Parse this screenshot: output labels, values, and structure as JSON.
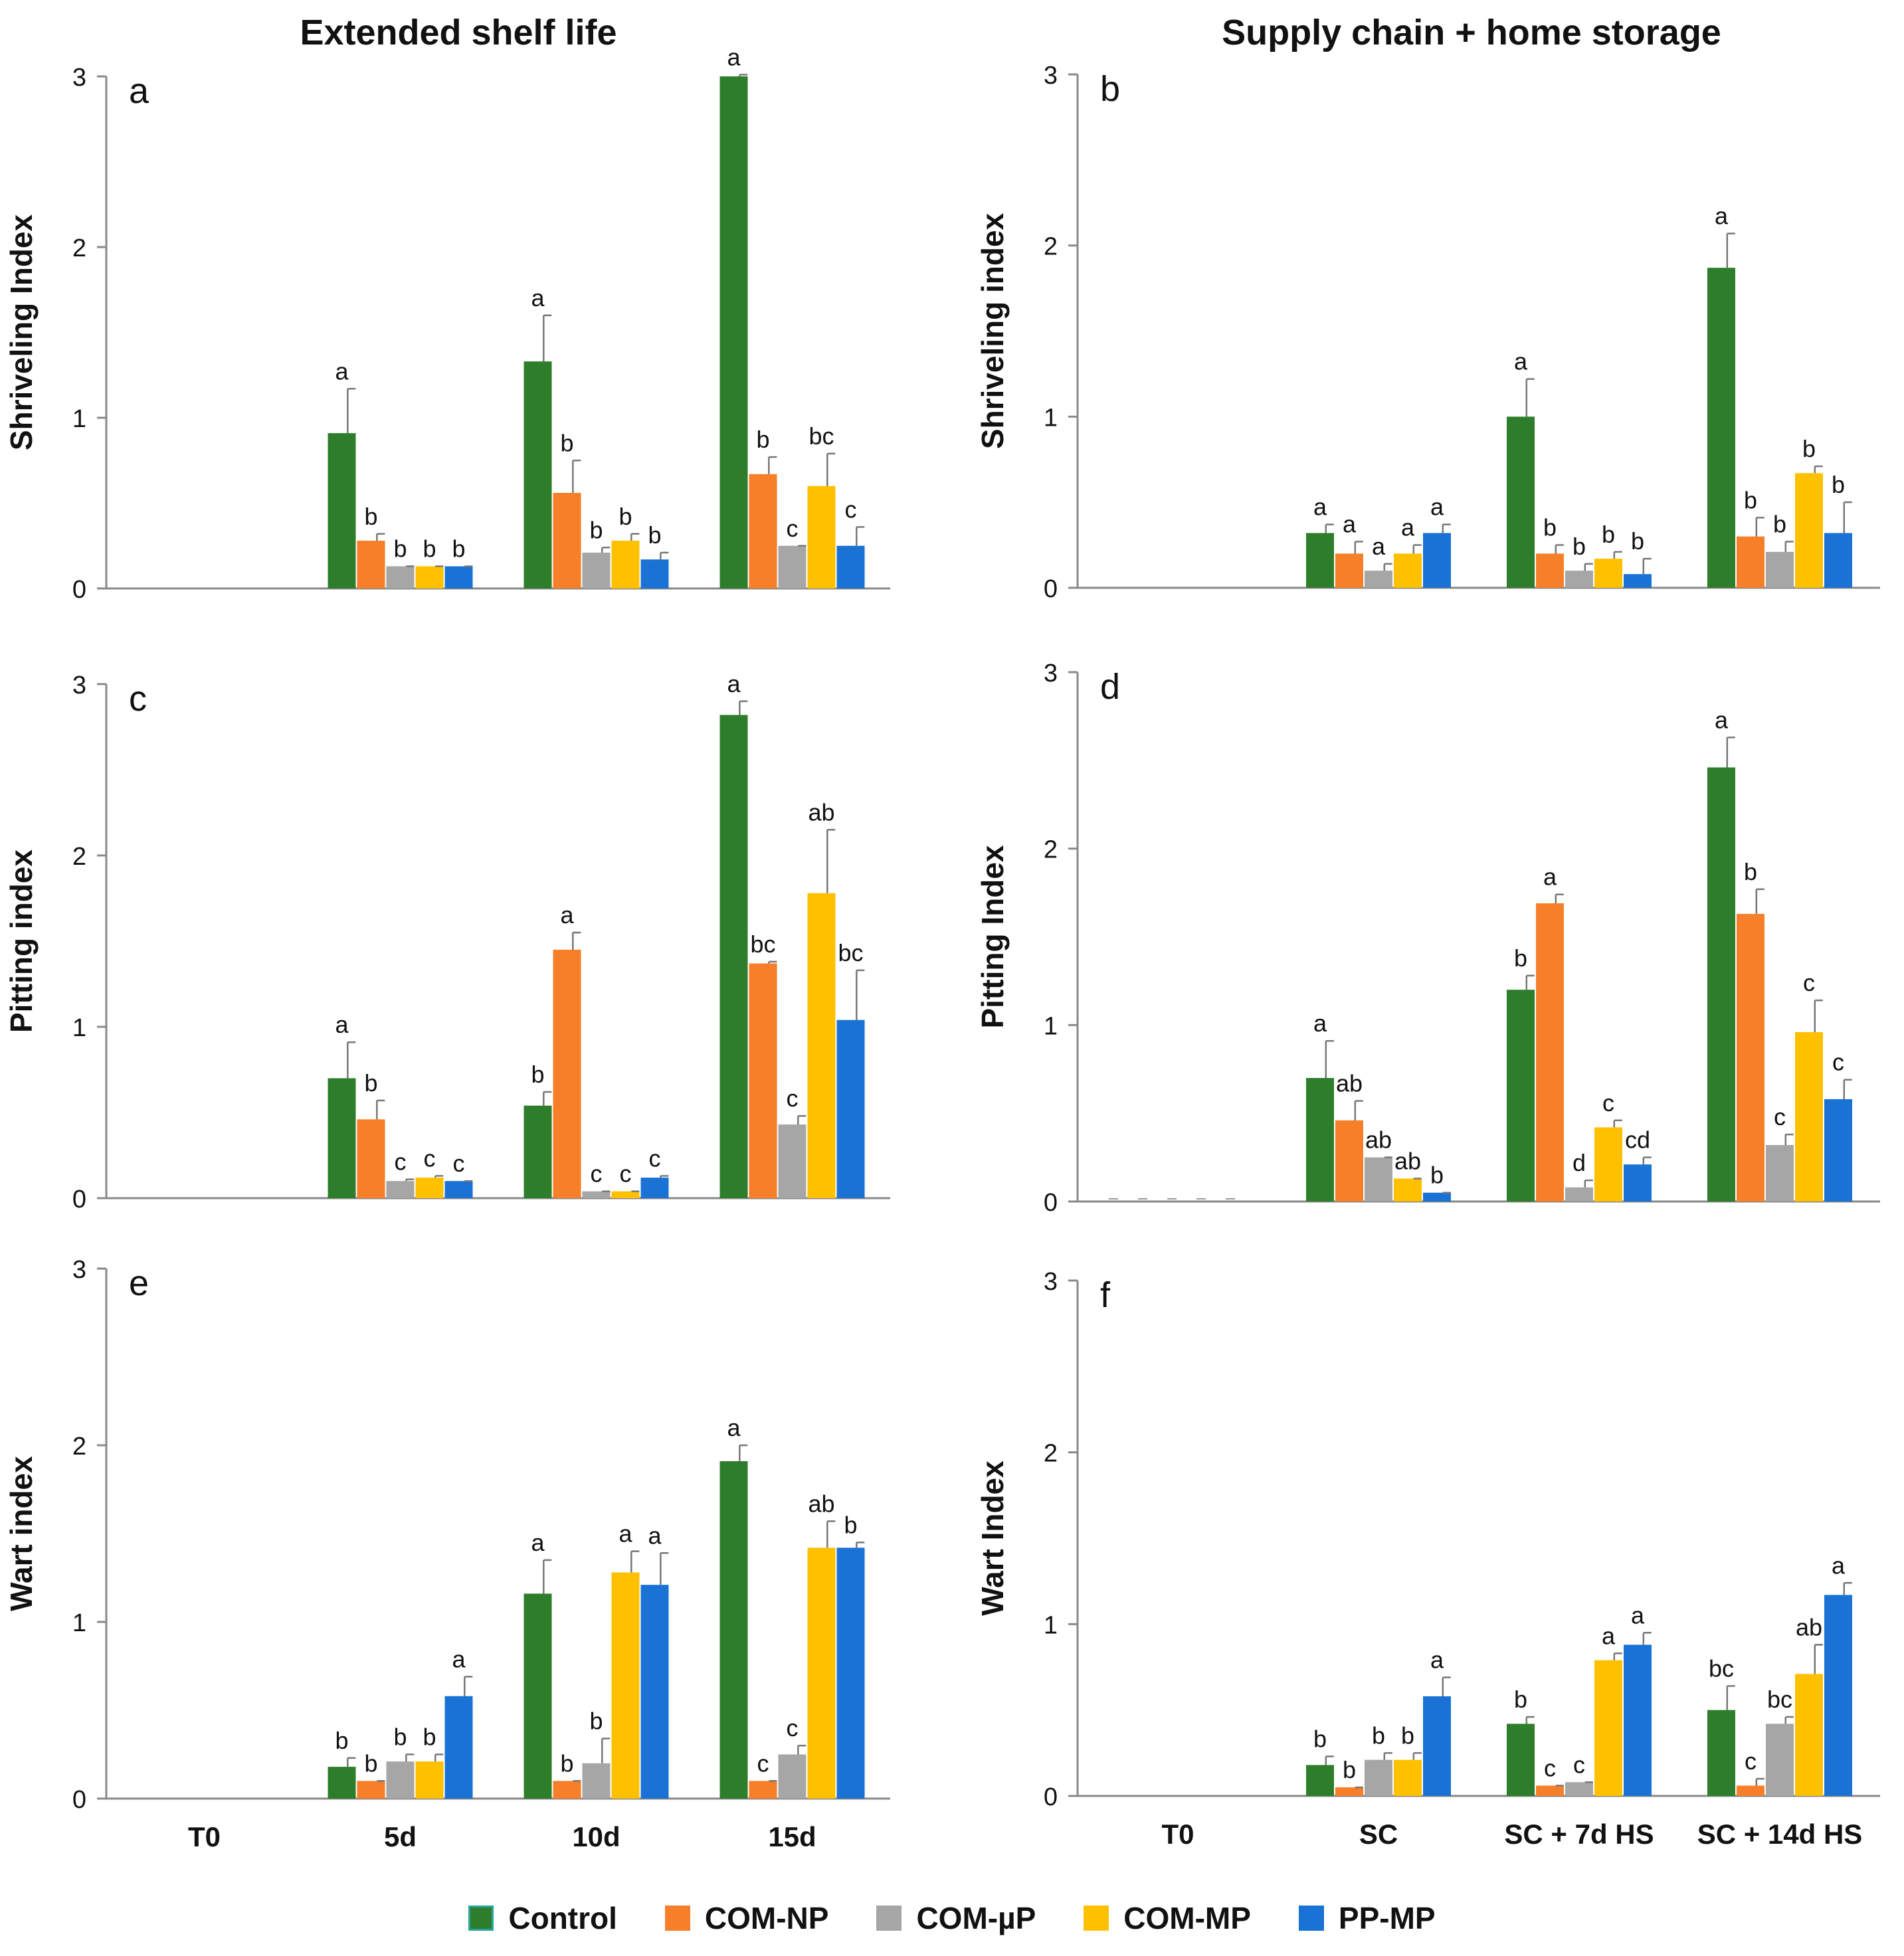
{
  "column_titles": {
    "left": "Extended shelf life",
    "right": "Supply chain + home storage"
  },
  "series_names": [
    "Control",
    "COM-NP",
    "COM-µP",
    "COM-MP",
    "PP-MP"
  ],
  "colors": {
    "Control": "#2e7d2b",
    "COM-NP": "#f77f2a",
    "COM-µP": "#a6a6a6",
    "COM-MP": "#ffc000",
    "PP-MP": "#1a73d4",
    "axis": "#888888",
    "text": "#111111"
  },
  "chart_data": [
    {
      "panel": "a",
      "type": "bar",
      "title": "",
      "ylabel": "Shriveling Index",
      "xlabel": "",
      "ylim": [
        0,
        3
      ],
      "yticks": [
        "0",
        "1",
        "2",
        "3"
      ],
      "categories": [
        "T0",
        "5d",
        "10d",
        "15d"
      ],
      "series": [
        {
          "name": "Control",
          "values": [
            0,
            0.91,
            1.33,
            3.0
          ],
          "errors": [
            0,
            0.26,
            0.27,
            0.01
          ],
          "letters": [
            "",
            "a",
            "a",
            "a"
          ]
        },
        {
          "name": "COM-NP",
          "values": [
            0,
            0.28,
            0.56,
            0.67
          ],
          "errors": [
            0,
            0.04,
            0.19,
            0.1
          ],
          "letters": [
            "",
            "b",
            "b",
            "b"
          ]
        },
        {
          "name": "COM-µP",
          "values": [
            0,
            0.13,
            0.21,
            0.25
          ],
          "errors": [
            0,
            0.0,
            0.03,
            0.0
          ],
          "letters": [
            "",
            "b",
            "b",
            "c"
          ]
        },
        {
          "name": "COM-MP",
          "values": [
            0,
            0.13,
            0.28,
            0.6
          ],
          "errors": [
            0,
            0.0,
            0.04,
            0.19
          ],
          "letters": [
            "",
            "b",
            "b",
            "bc"
          ]
        },
        {
          "name": "PP-MP",
          "values": [
            0,
            0.13,
            0.17,
            0.25
          ],
          "errors": [
            0,
            0.0,
            0.04,
            0.11
          ],
          "letters": [
            "",
            "b",
            "b",
            "c"
          ]
        }
      ]
    },
    {
      "panel": "b",
      "type": "bar",
      "title": "",
      "ylabel": "Shriveling index",
      "xlabel": "",
      "ylim": [
        0,
        3
      ],
      "yticks": [
        "0",
        "1",
        "2",
        "3"
      ],
      "categories": [
        "T0",
        "SC",
        "SC + 7d HS",
        "SC + 14d HS"
      ],
      "series": [
        {
          "name": "Control",
          "values": [
            0,
            0.32,
            1.0,
            1.87
          ],
          "errors": [
            0,
            0.05,
            0.22,
            0.2
          ],
          "letters": [
            "",
            "a",
            "a",
            "a"
          ]
        },
        {
          "name": "COM-NP",
          "values": [
            0,
            0.2,
            0.2,
            0.3
          ],
          "errors": [
            0,
            0.07,
            0.05,
            0.11
          ],
          "letters": [
            "",
            "a",
            "b",
            "b"
          ]
        },
        {
          "name": "COM-µP",
          "values": [
            0,
            0.1,
            0.1,
            0.21
          ],
          "errors": [
            0,
            0.04,
            0.04,
            0.06
          ],
          "letters": [
            "",
            "a",
            "b",
            "b"
          ]
        },
        {
          "name": "COM-MP",
          "values": [
            0,
            0.2,
            0.17,
            0.67
          ],
          "errors": [
            0,
            0.05,
            0.04,
            0.04
          ],
          "letters": [
            "",
            "a",
            "b",
            "b"
          ]
        },
        {
          "name": "PP-MP",
          "values": [
            0,
            0.32,
            0.08,
            0.32
          ],
          "errors": [
            0,
            0.05,
            0.09,
            0.18
          ],
          "letters": [
            "",
            "a",
            "b",
            "b"
          ]
        }
      ]
    },
    {
      "panel": "c",
      "type": "bar",
      "title": "",
      "ylabel": "Pitting index",
      "xlabel": "",
      "ylim": [
        0,
        3
      ],
      "yticks": [
        "0",
        "1",
        "2",
        "3"
      ],
      "categories": [
        "T0",
        "5d",
        "10d",
        "15d"
      ],
      "series": [
        {
          "name": "Control",
          "values": [
            0,
            0.7,
            0.54,
            2.82
          ],
          "errors": [
            0,
            0.21,
            0.08,
            0.08
          ],
          "letters": [
            "",
            "a",
            "b",
            "a"
          ]
        },
        {
          "name": "COM-NP",
          "values": [
            0,
            0.46,
            1.45,
            1.37
          ],
          "errors": [
            0,
            0.11,
            0.1,
            0.01
          ],
          "letters": [
            "",
            "b",
            "a",
            "bc"
          ]
        },
        {
          "name": "COM-µP",
          "values": [
            0,
            0.1,
            0.04,
            0.43
          ],
          "errors": [
            0,
            0.01,
            0.0,
            0.05
          ],
          "letters": [
            "",
            "c",
            "c",
            "c"
          ]
        },
        {
          "name": "COM-MP",
          "values": [
            0,
            0.12,
            0.04,
            1.78
          ],
          "errors": [
            0,
            0.01,
            0.0,
            0.37
          ],
          "letters": [
            "",
            "c",
            "c",
            "ab"
          ]
        },
        {
          "name": "PP-MP",
          "values": [
            0,
            0.1,
            0.12,
            1.04
          ],
          "errors": [
            0,
            0.0,
            0.01,
            0.29
          ],
          "letters": [
            "",
            "c",
            "c",
            "bc"
          ]
        }
      ]
    },
    {
      "panel": "d",
      "type": "bar",
      "title": "",
      "ylabel": "Pitting Index",
      "xlabel": "",
      "ylim": [
        0,
        3
      ],
      "yticks": [
        "0",
        "1",
        "2",
        "3"
      ],
      "categories": [
        "T0",
        "SC",
        "SC + 7d HS",
        "SC + 14d HS"
      ],
      "series": [
        {
          "name": "Control",
          "values": [
            0,
            0.7,
            1.2,
            2.46
          ],
          "errors": [
            0,
            0.21,
            0.08,
            0.17
          ],
          "letters": [
            "",
            "a",
            "b",
            "a"
          ]
        },
        {
          "name": "COM-NP",
          "values": [
            0,
            0.46,
            1.69,
            1.63
          ],
          "errors": [
            0,
            0.11,
            0.05,
            0.14
          ],
          "letters": [
            "",
            "ab",
            "a",
            "b"
          ]
        },
        {
          "name": "COM-µP",
          "values": [
            0,
            0.25,
            0.08,
            0.32
          ],
          "errors": [
            0,
            0.0,
            0.04,
            0.06
          ],
          "letters": [
            "",
            "ab",
            "d",
            "c"
          ]
        },
        {
          "name": "COM-MP",
          "values": [
            0,
            0.13,
            0.42,
            0.96
          ],
          "errors": [
            0,
            0.0,
            0.04,
            0.18
          ],
          "letters": [
            "",
            "ab",
            "c",
            "c"
          ]
        },
        {
          "name": "PP-MP",
          "values": [
            0,
            0.05,
            0.21,
            0.58
          ],
          "errors": [
            0,
            0.0,
            0.04,
            0.11
          ],
          "letters": [
            "",
            "b",
            "cd",
            "c"
          ]
        }
      ]
    },
    {
      "panel": "e",
      "type": "bar",
      "title": "",
      "ylabel": "Wart index",
      "xlabel": "",
      "ylim": [
        0,
        3
      ],
      "yticks": [
        "0",
        "1",
        "2",
        "3"
      ],
      "categories": [
        "T0",
        "5d",
        "10d",
        "15d"
      ],
      "series": [
        {
          "name": "Control",
          "values": [
            0,
            0.18,
            1.16,
            1.91
          ],
          "errors": [
            0,
            0.05,
            0.19,
            0.09
          ],
          "letters": [
            "",
            "b",
            "a",
            "a"
          ]
        },
        {
          "name": "COM-NP",
          "values": [
            0,
            0.1,
            0.1,
            0.1
          ],
          "errors": [
            0,
            0.0,
            0.0,
            0.0
          ],
          "letters": [
            "",
            "b",
            "b",
            "c"
          ]
        },
        {
          "name": "COM-µP",
          "values": [
            0,
            0.21,
            0.2,
            0.25
          ],
          "errors": [
            0,
            0.04,
            0.14,
            0.05
          ],
          "letters": [
            "",
            "b",
            "b",
            "c"
          ]
        },
        {
          "name": "COM-MP",
          "values": [
            0,
            0.21,
            1.28,
            1.42
          ],
          "errors": [
            0,
            0.04,
            0.12,
            0.15
          ],
          "letters": [
            "",
            "b",
            "a",
            "ab"
          ]
        },
        {
          "name": "PP-MP",
          "values": [
            0,
            0.58,
            1.21,
            1.42
          ],
          "errors": [
            0,
            0.11,
            0.18,
            0.03
          ],
          "letters": [
            "",
            "a",
            "a",
            "b"
          ]
        }
      ]
    },
    {
      "panel": "f",
      "type": "bar",
      "title": "",
      "ylabel": "Wart Index",
      "xlabel": "",
      "ylim": [
        0,
        3
      ],
      "yticks": [
        "0",
        "1",
        "2",
        "3"
      ],
      "categories": [
        "T0",
        "SC",
        "SC + 7d HS",
        "SC + 14d HS"
      ],
      "series": [
        {
          "name": "Control",
          "values": [
            0,
            0.18,
            0.42,
            0.5
          ],
          "errors": [
            0,
            0.05,
            0.04,
            0.14
          ],
          "letters": [
            "",
            "b",
            "b",
            "bc"
          ]
        },
        {
          "name": "COM-NP",
          "values": [
            0,
            0.05,
            0.06,
            0.06
          ],
          "errors": [
            0,
            0.0,
            0.0,
            0.04
          ],
          "letters": [
            "",
            "b",
            "c",
            "c"
          ]
        },
        {
          "name": "COM-µP",
          "values": [
            0,
            0.21,
            0.08,
            0.42
          ],
          "errors": [
            0,
            0.04,
            0.0,
            0.04
          ],
          "letters": [
            "",
            "b",
            "c",
            "bc"
          ]
        },
        {
          "name": "COM-MP",
          "values": [
            0,
            0.21,
            0.79,
            0.71
          ],
          "errors": [
            0,
            0.04,
            0.04,
            0.17
          ],
          "letters": [
            "",
            "b",
            "a",
            "ab"
          ]
        },
        {
          "name": "PP-MP",
          "values": [
            0,
            0.58,
            0.88,
            1.17
          ],
          "errors": [
            0,
            0.11,
            0.07,
            0.07
          ],
          "letters": [
            "",
            "a",
            "a",
            "a"
          ]
        }
      ]
    }
  ]
}
